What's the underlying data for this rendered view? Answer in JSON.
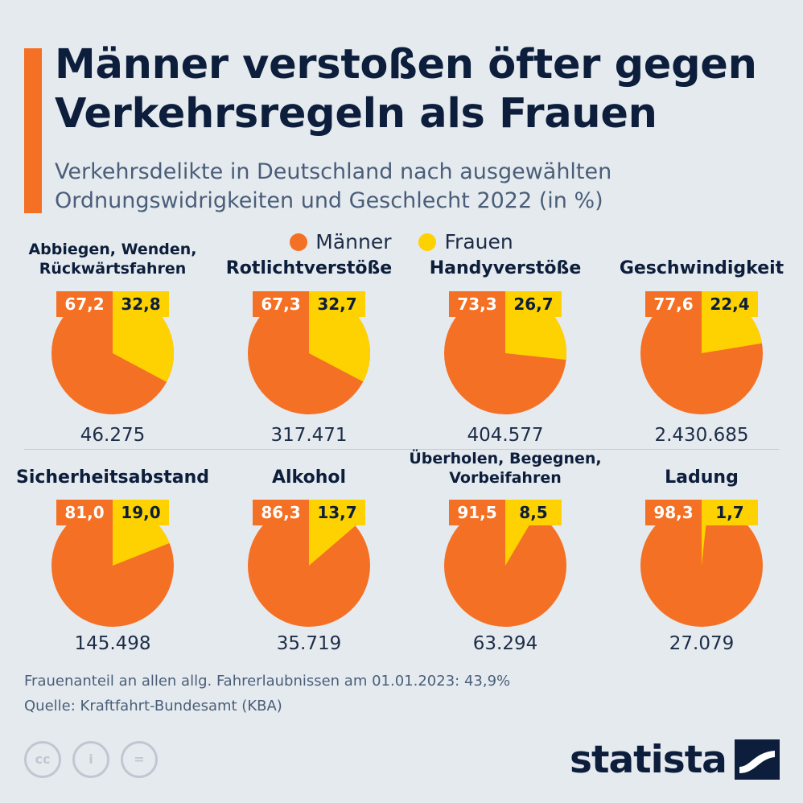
{
  "title": "Männer verstoßen öfter gegen Verkehrsregeln als Frauen",
  "subtitle": "Verkehrsdelikte in Deutschland nach ausgewählten Ordnungswidrigkeiten und Geschlecht 2022 (in %)",
  "legend": {
    "male": "Männer",
    "female": "Frauen"
  },
  "colors": {
    "male": "#f47024",
    "female": "#fdd200",
    "male_label": "#f47024",
    "female_label": "#fdd200"
  },
  "chart_data": {
    "type": "pie",
    "series_names": [
      "Männer",
      "Frauen"
    ],
    "charts": [
      {
        "title": [
          "Abbiegen, Wenden,",
          "Rückwärtsfahren"
        ],
        "male": "67,2",
        "female": "32,8",
        "total": "46.275"
      },
      {
        "title": [
          "Rotlichtverstöße"
        ],
        "male": "67,3",
        "female": "32,7",
        "total": "317.471"
      },
      {
        "title": [
          "Handyverstöße"
        ],
        "male": "73,3",
        "female": "26,7",
        "total": "404.577"
      },
      {
        "title": [
          "Geschwindigkeit"
        ],
        "male": "77,6",
        "female": "22,4",
        "total": "2.430.685"
      },
      {
        "title": [
          "Sicherheitsabstand"
        ],
        "male": "81,0",
        "female": "19,0",
        "total": "145.498"
      },
      {
        "title": [
          "Alkohol"
        ],
        "male": "86,3",
        "female": "13,7",
        "total": "35.719"
      },
      {
        "title": [
          "Überholen, Begegnen,",
          "Vorbeifahren"
        ],
        "male": "91,5",
        "female": "8,5",
        "total": "63.294"
      },
      {
        "title": [
          "Ladung"
        ],
        "male": "98,3",
        "female": "1,7",
        "total": "27.079"
      }
    ]
  },
  "footnote": "Frauenanteil an allen allg. Fahrerlaubnissen am 01.01.2023: 43,9%",
  "source": "Quelle: Kraftfahrt-Bundesamt (KBA)",
  "license": {
    "cc": "cc",
    "by": "i",
    "nd": "="
  },
  "logo": "statista"
}
